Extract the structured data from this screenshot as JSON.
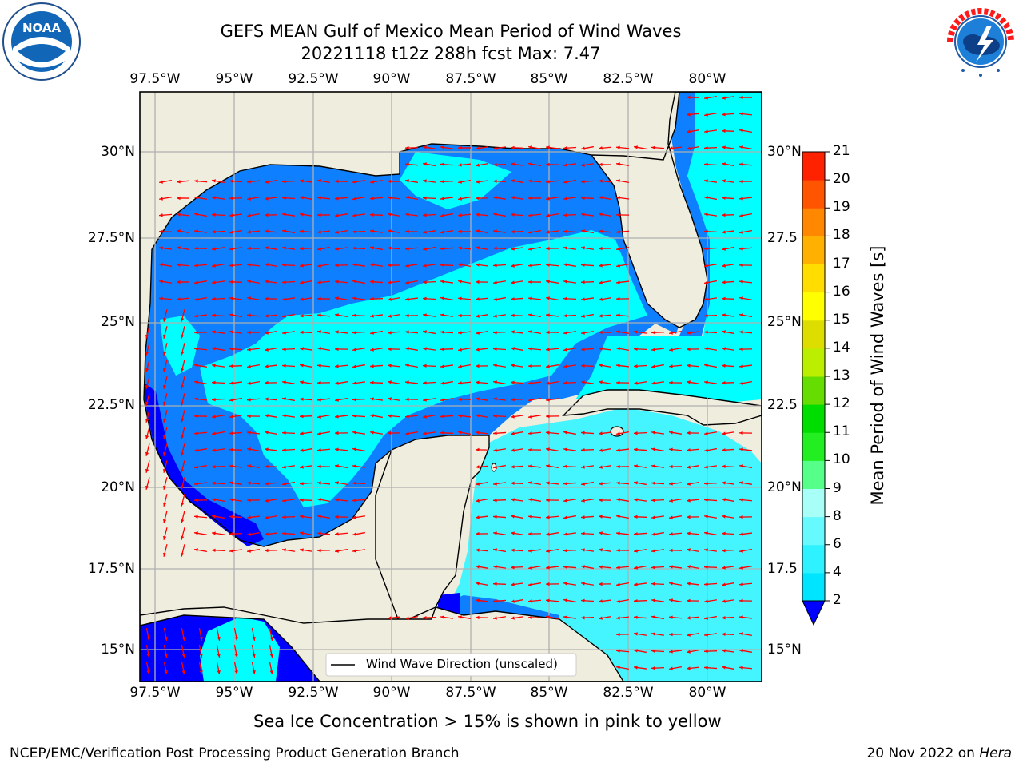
{
  "title": {
    "line1": "GEFS MEAN Gulf of Mexico Mean Period of Wind Waves",
    "line2": "20221118 t12z 288h fcst   Max: 7.47"
  },
  "axes": {
    "lon_labels": [
      "97.5°W",
      "95°W",
      "92.5°W",
      "90°W",
      "87.5°W",
      "85°W",
      "82.5°W",
      "80°W"
    ],
    "lat_labels": [
      "30°N",
      "27.5°N",
      "25°N",
      "22.5°N",
      "20°N",
      "17.5°N",
      "15°N"
    ],
    "lat_labels_right": [
      "30°N",
      "27.5",
      "25°N",
      "22.5",
      "20°N",
      "17.5",
      "15°N"
    ],
    "lon_range": [
      -98.0,
      -78.2
    ],
    "lat_range": [
      14.0,
      31.8
    ]
  },
  "legend": {
    "label": "Wind Wave Direction (unscaled)"
  },
  "colorbar": {
    "title": "Mean Period of Wind Waves [s]",
    "ticks": [
      "2",
      "4",
      "6",
      "8",
      "9",
      "10",
      "11",
      "12",
      "13",
      "14",
      "15",
      "16",
      "17",
      "18",
      "19",
      "20",
      "21"
    ],
    "colors": [
      "#1f7fff",
      "#00e5ff",
      "#2ef2ff",
      "#66faff",
      "#a8fff8",
      "#55ff88",
      "#22ee22",
      "#00dd00",
      "#66dd00",
      "#bbee00",
      "#dddd00",
      "#ffff00",
      "#ffdd00",
      "#ffb000",
      "#ff8800",
      "#ff5500",
      "#ff2200",
      "#ff0000"
    ]
  },
  "caption": "Sea Ice Concentration > 15% is shown in pink to yellow",
  "footer": {
    "left": "NCEP/EMC/Verification Post Processing Product Generation Branch",
    "right_date": "20 Nov 2022 on ",
    "right_host": "Hera"
  },
  "logos": {
    "noaa": "NOAA",
    "nws": "NATIONAL WEATHER SERVICE"
  },
  "colors": {
    "land": "#efedde",
    "dark_blue": "#0000ff",
    "mid_blue": "#0d7fff",
    "cyan": "#00ffff",
    "light_cyan": "#44f4ff",
    "arrow": "#ff0000",
    "grid": "#b0b0b0"
  }
}
